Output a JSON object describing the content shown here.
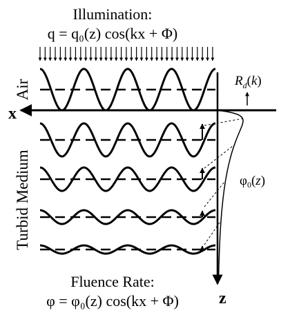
{
  "header": {
    "title": "Illumination:",
    "equation": "q = q₀(z) cos(kx + Φ)"
  },
  "footer": {
    "title": "Fluence Rate:",
    "equation": "φ  = φ₀(z) cos(kx + Φ)"
  },
  "labels": {
    "air": "Air",
    "medium": "Turbid Medium",
    "x_axis": "x",
    "z_axis": "z",
    "reflectance": "R_d(k)",
    "profile": "φ₀(z)"
  },
  "icons": {
    "arrow": "arrow-icon"
  }
}
